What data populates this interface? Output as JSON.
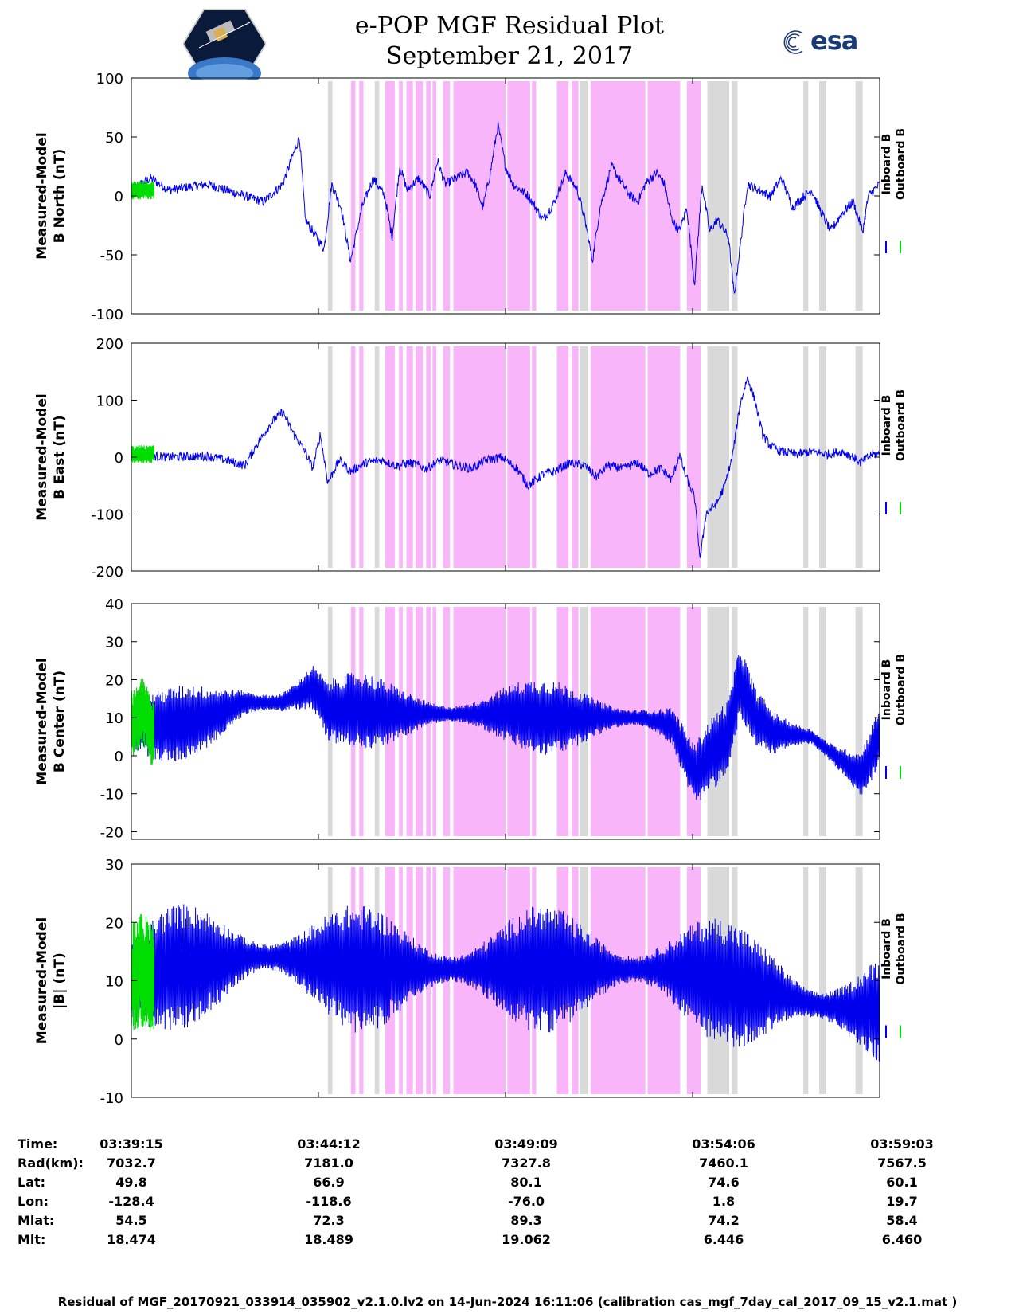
{
  "title": {
    "line1": "e-POP MGF Residual Plot",
    "line2": "September 21, 2017"
  },
  "logos": {
    "mission": "cassiope-mission-logo",
    "agency": "esa"
  },
  "colors": {
    "inboard": "#0000ee",
    "outboard": "#00dd00",
    "gap_pink": "#f9b5f9",
    "gap_gray": "#d9d9d9"
  },
  "chart_data": {
    "type": "line",
    "x_unit": "minutes since 03:39:15",
    "x_range": [
      0,
      19.8
    ],
    "x_ticks": [
      0,
      4.95,
      9.9,
      14.85,
      19.8
    ],
    "series_names": [
      "Inboard B",
      "Outboard B"
    ],
    "shaded_intervals": [
      {
        "start": 5.2,
        "end": 5.32,
        "kind": "gray"
      },
      {
        "start": 5.81,
        "end": 5.93,
        "kind": "pink"
      },
      {
        "start": 6.03,
        "end": 6.14,
        "kind": "pink"
      },
      {
        "start": 6.44,
        "end": 6.56,
        "kind": "gray"
      },
      {
        "start": 6.72,
        "end": 6.97,
        "kind": "pink"
      },
      {
        "start": 7.08,
        "end": 7.18,
        "kind": "pink"
      },
      {
        "start": 7.28,
        "end": 7.45,
        "kind": "pink"
      },
      {
        "start": 7.52,
        "end": 7.71,
        "kind": "pink"
      },
      {
        "start": 7.8,
        "end": 7.92,
        "kind": "pink"
      },
      {
        "start": 7.97,
        "end": 8.07,
        "kind": "pink"
      },
      {
        "start": 8.25,
        "end": 8.43,
        "kind": "pink"
      },
      {
        "start": 8.52,
        "end": 9.9,
        "kind": "pink"
      },
      {
        "start": 9.95,
        "end": 10.55,
        "kind": "pink"
      },
      {
        "start": 10.6,
        "end": 10.71,
        "kind": "pink"
      },
      {
        "start": 11.26,
        "end": 11.57,
        "kind": "pink"
      },
      {
        "start": 11.66,
        "end": 11.83,
        "kind": "pink"
      },
      {
        "start": 11.86,
        "end": 12.08,
        "kind": "gray"
      },
      {
        "start": 12.15,
        "end": 13.6,
        "kind": "pink"
      },
      {
        "start": 13.66,
        "end": 14.52,
        "kind": "pink"
      },
      {
        "start": 14.7,
        "end": 15.06,
        "kind": "pink"
      },
      {
        "start": 15.24,
        "end": 15.82,
        "kind": "gray"
      },
      {
        "start": 15.88,
        "end": 16.04,
        "kind": "gray"
      },
      {
        "start": 17.78,
        "end": 17.91,
        "kind": "gray"
      },
      {
        "start": 18.2,
        "end": 18.39,
        "kind": "gray"
      },
      {
        "start": 19.16,
        "end": 19.35,
        "kind": "gray"
      }
    ],
    "panels": [
      {
        "ylabel_line1": "Measured-Model",
        "ylabel_line2": "B North (nT)",
        "ylim": [
          -100,
          100
        ],
        "yticks": [
          100,
          50,
          0,
          -50,
          -100
        ],
        "inboard_keypoints": [
          [
            0,
            5
          ],
          [
            0.5,
            15
          ],
          [
            1,
            5
          ],
          [
            2,
            10
          ],
          [
            3,
            0
          ],
          [
            3.5,
            -5
          ],
          [
            4,
            10
          ],
          [
            4.45,
            50
          ],
          [
            4.6,
            -20
          ],
          [
            4.9,
            -35
          ],
          [
            5.1,
            -45
          ],
          [
            5.3,
            10
          ],
          [
            5.55,
            -10
          ],
          [
            5.8,
            -55
          ],
          [
            6.1,
            -10
          ],
          [
            6.4,
            15
          ],
          [
            6.7,
            0
          ],
          [
            6.9,
            -35
          ],
          [
            7.1,
            25
          ],
          [
            7.3,
            5
          ],
          [
            7.6,
            15
          ],
          [
            7.9,
            0
          ],
          [
            8.1,
            30
          ],
          [
            8.3,
            10
          ],
          [
            8.6,
            15
          ],
          [
            8.9,
            20
          ],
          [
            9.1,
            10
          ],
          [
            9.3,
            -10
          ],
          [
            9.5,
            20
          ],
          [
            9.7,
            60
          ],
          [
            9.9,
            25
          ],
          [
            10.1,
            10
          ],
          [
            10.5,
            0
          ],
          [
            10.9,
            -20
          ],
          [
            11.2,
            -5
          ],
          [
            11.5,
            20
          ],
          [
            11.8,
            5
          ],
          [
            12.0,
            -20
          ],
          [
            12.2,
            -55
          ],
          [
            12.4,
            -10
          ],
          [
            12.7,
            25
          ],
          [
            13.0,
            10
          ],
          [
            13.2,
            0
          ],
          [
            13.4,
            -5
          ],
          [
            13.6,
            10
          ],
          [
            13.9,
            20
          ],
          [
            14.1,
            10
          ],
          [
            14.3,
            -20
          ],
          [
            14.5,
            -30
          ],
          [
            14.7,
            -10
          ],
          [
            14.9,
            -75
          ],
          [
            15.1,
            10
          ],
          [
            15.3,
            -30
          ],
          [
            15.5,
            -20
          ],
          [
            15.8,
            -35
          ],
          [
            15.95,
            -85
          ],
          [
            16.1,
            -45
          ],
          [
            16.3,
            10
          ],
          [
            16.6,
            5
          ],
          [
            16.9,
            0
          ],
          [
            17.2,
            15
          ],
          [
            17.5,
            -10
          ],
          [
            17.8,
            0
          ],
          [
            18.0,
            5
          ],
          [
            18.2,
            -10
          ],
          [
            18.5,
            -30
          ],
          [
            18.8,
            -15
          ],
          [
            19.1,
            -5
          ],
          [
            19.35,
            -30
          ],
          [
            19.5,
            0
          ],
          [
            19.8,
            10
          ]
        ]
      },
      {
        "ylabel_line1": "Measured-Model",
        "ylabel_line2": "B East (nT)",
        "ylim": [
          -200,
          200
        ],
        "yticks": [
          200,
          100,
          0,
          -100,
          -200
        ],
        "inboard_keypoints": [
          [
            0,
            5
          ],
          [
            1,
            0
          ],
          [
            2,
            2
          ],
          [
            2.5,
            -5
          ],
          [
            3,
            -15
          ],
          [
            3.3,
            20
          ],
          [
            3.7,
            60
          ],
          [
            4,
            80
          ],
          [
            4.3,
            40
          ],
          [
            4.6,
            10
          ],
          [
            4.8,
            -20
          ],
          [
            5.0,
            40
          ],
          [
            5.2,
            -45
          ],
          [
            5.5,
            -5
          ],
          [
            5.8,
            -25
          ],
          [
            6.2,
            -10
          ],
          [
            6.6,
            -5
          ],
          [
            7.0,
            -15
          ],
          [
            7.4,
            -10
          ],
          [
            7.8,
            -20
          ],
          [
            8.2,
            -5
          ],
          [
            8.6,
            -15
          ],
          [
            9.0,
            -20
          ],
          [
            9.4,
            -5
          ],
          [
            9.8,
            0
          ],
          [
            10.2,
            -20
          ],
          [
            10.5,
            -50
          ],
          [
            10.9,
            -30
          ],
          [
            11.2,
            -25
          ],
          [
            11.6,
            -10
          ],
          [
            12.0,
            -15
          ],
          [
            12.3,
            -35
          ],
          [
            12.6,
            -15
          ],
          [
            13.0,
            -20
          ],
          [
            13.4,
            -10
          ],
          [
            13.7,
            -30
          ],
          [
            14.0,
            -20
          ],
          [
            14.3,
            -40
          ],
          [
            14.5,
            5
          ],
          [
            14.65,
            -30
          ],
          [
            14.9,
            -70
          ],
          [
            15.05,
            -180
          ],
          [
            15.2,
            -100
          ],
          [
            15.5,
            -80
          ],
          [
            15.7,
            -50
          ],
          [
            15.9,
            0
          ],
          [
            16.1,
            90
          ],
          [
            16.3,
            140
          ],
          [
            16.5,
            100
          ],
          [
            16.7,
            40
          ],
          [
            16.9,
            20
          ],
          [
            17.2,
            10
          ],
          [
            17.6,
            5
          ],
          [
            18.0,
            10
          ],
          [
            18.4,
            5
          ],
          [
            18.8,
            10
          ],
          [
            19.1,
            0
          ],
          [
            19.3,
            -10
          ],
          [
            19.6,
            5
          ],
          [
            19.8,
            5
          ]
        ]
      },
      {
        "ylabel_line1": "Measured-Model",
        "ylabel_line2": "B Center (nT)",
        "ylim": [
          -22,
          40
        ],
        "yticks": [
          40,
          30,
          20,
          10,
          0,
          -10,
          -20
        ],
        "inboard_keypoints": [
          [
            0,
            8
          ],
          [
            1,
            8
          ],
          [
            2,
            10
          ],
          [
            3,
            14
          ],
          [
            4,
            14
          ],
          [
            4.8,
            18
          ],
          [
            5.2,
            12
          ],
          [
            6,
            12
          ],
          [
            7,
            11
          ],
          [
            8,
            11
          ],
          [
            9,
            11
          ],
          [
            10,
            11
          ],
          [
            11,
            10
          ],
          [
            12,
            10
          ],
          [
            13.5,
            10
          ],
          [
            14.3,
            8
          ],
          [
            14.9,
            -5
          ],
          [
            15.3,
            0
          ],
          [
            15.8,
            5
          ],
          [
            16.1,
            20
          ],
          [
            16.5,
            10
          ],
          [
            17.0,
            6
          ],
          [
            18.0,
            5
          ],
          [
            18.6,
            0
          ],
          [
            19.3,
            -5
          ],
          [
            19.8,
            5
          ]
        ],
        "inboard_amplitude": 10,
        "outboard_keypoints": [
          [
            0,
            8
          ],
          [
            0.3,
            12
          ],
          [
            0.6,
            5
          ]
        ]
      },
      {
        "ylabel_line1": "Measured-Model",
        "ylabel_line2": "|B| (nT)",
        "ylim": [
          -10,
          30
        ],
        "yticks": [
          30,
          20,
          10,
          0,
          -10
        ],
        "inboard_keypoints": [
          [
            0,
            10
          ],
          [
            1,
            12
          ],
          [
            2,
            13
          ],
          [
            3,
            14
          ],
          [
            4,
            14
          ],
          [
            5,
            13
          ],
          [
            6,
            12
          ],
          [
            7,
            12
          ],
          [
            8,
            12
          ],
          [
            9,
            12
          ],
          [
            10,
            12
          ],
          [
            11,
            12
          ],
          [
            12,
            12
          ],
          [
            13,
            12
          ],
          [
            14,
            12
          ],
          [
            15,
            11
          ],
          [
            16,
            9
          ],
          [
            17,
            8
          ],
          [
            18,
            6
          ],
          [
            19,
            5
          ],
          [
            19.8,
            5
          ]
        ],
        "inboard_amplitude": 11,
        "outboard_keypoints": [
          [
            0,
            10
          ],
          [
            0.3,
            12
          ],
          [
            0.6,
            10
          ]
        ]
      }
    ]
  },
  "legend": {
    "inboard": "Inboard B",
    "outboard": "Outboard B"
  },
  "ephemeris": {
    "row_labels": [
      "Time:",
      "Rad(km):",
      "Lat:",
      "Lon:",
      "Mlat:",
      "Mlt:"
    ],
    "columns": [
      [
        "03:39:15",
        "7032.7",
        "49.8",
        "-128.4",
        "54.5",
        "18.474"
      ],
      [
        "03:44:12",
        "7181.0",
        "66.9",
        "-118.6",
        "72.3",
        "18.489"
      ],
      [
        "03:49:09",
        "7327.8",
        "80.1",
        "-76.0",
        "89.3",
        "19.062"
      ],
      [
        "03:54:06",
        "7460.1",
        "74.6",
        "1.8",
        "74.2",
        "6.446"
      ],
      [
        "03:59:03",
        "7567.5",
        "60.1",
        "19.7",
        "58.4",
        "6.460"
      ]
    ]
  },
  "footer": "Residual of MGF_20170921_033914_035902_v2.1.0.lv2 on 14-Jun-2024 16:11:06 (calibration cas_mgf_7day_cal_2017_09_15_v2.1.mat )"
}
